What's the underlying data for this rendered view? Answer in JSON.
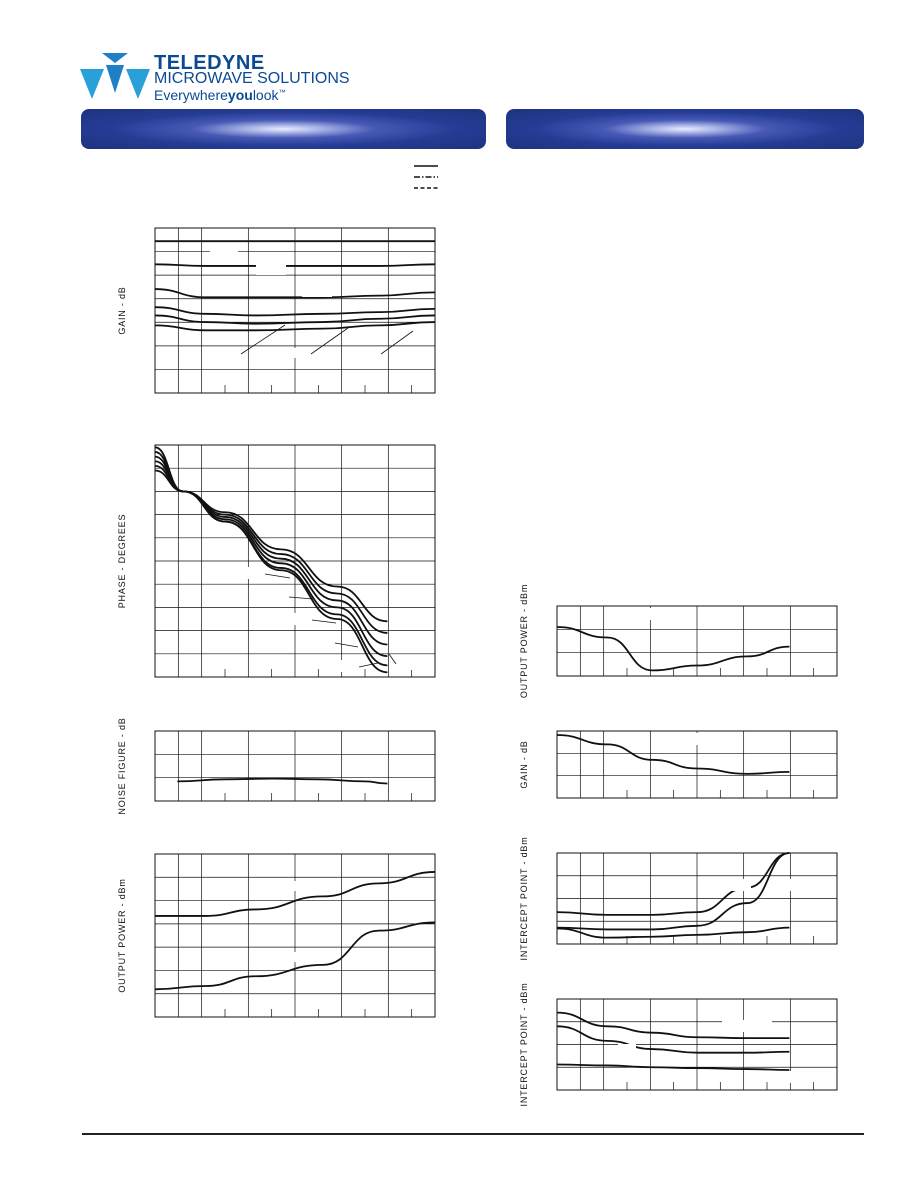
{
  "brand": {
    "name": "TELEDYNE",
    "division": "MICROWAVE SOLUTIONS",
    "tagline_prefix": "Everywhere",
    "tagline_bold": "you",
    "tagline_suffix": "look",
    "tagline_mark": "™",
    "accent_color": "#0b4a93"
  },
  "banner_color": "#253c94",
  "chart_data": [
    {
      "id": "gain-left",
      "type": "line",
      "ylabel": "GAIN - dB",
      "grid": true,
      "series": [
        {
          "values": [
            0.92,
            0.92,
            0.92,
            0.92,
            0.92,
            0.92
          ]
        },
        {
          "values": [
            0.78,
            0.77,
            0.77,
            0.77,
            0.77,
            0.78
          ]
        },
        {
          "values": [
            0.63,
            0.58,
            0.58,
            0.58,
            0.59,
            0.61
          ]
        },
        {
          "values": [
            0.52,
            0.48,
            0.47,
            0.48,
            0.49,
            0.51
          ]
        },
        {
          "values": [
            0.47,
            0.43,
            0.42,
            0.43,
            0.45,
            0.47
          ]
        },
        {
          "values": [
            0.41,
            0.38,
            0.38,
            0.39,
            0.41,
            0.43
          ]
        }
      ]
    },
    {
      "id": "phase-left",
      "type": "line",
      "ylabel": "PHASE - DEGREES",
      "grid": true,
      "series": [
        {
          "values": [
            0.99,
            0.8,
            0.67,
            0.46,
            0.25,
            0.02
          ]
        },
        {
          "values": [
            0.97,
            0.8,
            0.67,
            0.47,
            0.27,
            0.05
          ]
        },
        {
          "values": [
            0.95,
            0.8,
            0.68,
            0.49,
            0.3,
            0.09
          ]
        },
        {
          "values": [
            0.93,
            0.8,
            0.69,
            0.51,
            0.33,
            0.14
          ]
        },
        {
          "values": [
            0.91,
            0.8,
            0.7,
            0.53,
            0.36,
            0.19
          ]
        },
        {
          "values": [
            0.89,
            0.8,
            0.71,
            0.55,
            0.39,
            0.24
          ]
        }
      ]
    },
    {
      "id": "noise-figure-left",
      "type": "line",
      "ylabel": "NOISE FIGURE - dB",
      "grid": true,
      "series": [
        {
          "values": [
            0.28,
            0.31,
            0.32,
            0.31,
            0.28,
            0.25
          ]
        }
      ]
    },
    {
      "id": "output-power-left",
      "type": "line",
      "ylabel": "OUTPUT POWER - dBm",
      "grid": true,
      "series": [
        {
          "values": [
            0.62,
            0.62,
            0.66,
            0.74,
            0.82,
            0.89
          ]
        },
        {
          "values": [
            0.17,
            0.19,
            0.25,
            0.32,
            0.53,
            0.58
          ]
        }
      ]
    },
    {
      "id": "output-power-right",
      "type": "line",
      "ylabel": "OUTPUT POWER - dBm",
      "grid": true,
      "series": [
        {
          "values": [
            0.7,
            0.55,
            0.08,
            0.15,
            0.28,
            0.42
          ]
        }
      ]
    },
    {
      "id": "gain-right",
      "type": "line",
      "ylabel": "GAIN - dB",
      "grid": true,
      "series": [
        {
          "values": [
            0.94,
            0.8,
            0.57,
            0.44,
            0.36,
            0.39
          ]
        }
      ]
    },
    {
      "id": "intercept-point-right-1",
      "type": "line",
      "ylabel": "INTERCEPT POINT - dBm",
      "grid": true,
      "series": [
        {
          "values": [
            0.35,
            0.32,
            0.32,
            0.35,
            0.62,
            1.0
          ]
        },
        {
          "values": [
            0.18,
            0.16,
            0.16,
            0.2,
            0.45,
            1.0
          ]
        },
        {
          "values": [
            0.17,
            0.07,
            0.08,
            0.1,
            0.13,
            0.18
          ]
        }
      ]
    },
    {
      "id": "intercept-point-right-2",
      "type": "line",
      "ylabel": "INTERCEPT POINT - dBm",
      "grid": true,
      "series": [
        {
          "values": [
            0.85,
            0.7,
            0.63,
            0.58,
            0.57,
            0.57
          ]
        },
        {
          "values": [
            0.7,
            0.54,
            0.45,
            0.41,
            0.41,
            0.42
          ]
        },
        {
          "values": [
            0.28,
            0.27,
            0.25,
            0.24,
            0.23,
            0.22
          ]
        }
      ]
    }
  ]
}
